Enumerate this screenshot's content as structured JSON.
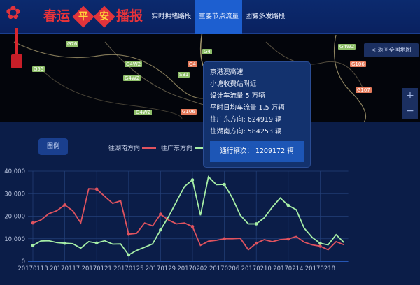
{
  "header": {
    "logo_text": [
      "春运",
      "平",
      "安",
      "播报"
    ],
    "tabs": [
      {
        "label": "实时拥堵路段",
        "active": false
      },
      {
        "label": "重要节点流量",
        "active": true
      },
      {
        "label": "团雾多发路段",
        "active": false
      }
    ]
  },
  "map": {
    "back_label": "< 返回全国地图",
    "zoom_in": "+",
    "zoom_out": "−",
    "road_labels": [
      "G55",
      "G4W2",
      "G4W2",
      "G4W2",
      "S31",
      "G4",
      "G4",
      "G106",
      "G76",
      "G4W2",
      "G106",
      "G107"
    ]
  },
  "tooltip": {
    "road": "京港澳高速",
    "location": "小塘收费站附近",
    "design_flow": "设计车流量 5 万辆",
    "avg_flow": "平时日均车流量 1.5 万辆",
    "to_guangdong": "往广东方向: 624919 辆",
    "to_hunan": "往湖南方向: 584253 辆",
    "total": "通行辆次： 1209172 辆"
  },
  "legend": {
    "button": "图例",
    "series": [
      {
        "name": "往湖南方向",
        "color": "#e0535f"
      },
      {
        "name": "往广东方向",
        "color": "#a6eea6"
      }
    ]
  },
  "chart_data": {
    "type": "line",
    "x_tick_labels": [
      "20170113",
      "20170117",
      "20170121",
      "20170125",
      "20170129",
      "20170202",
      "20170206",
      "20170210",
      "20170214",
      "20170218"
    ],
    "x_start": "20170113",
    "x_end": "20170221",
    "y_tick_labels": [
      "0",
      "10,000",
      "20,000",
      "30,000",
      "40,000"
    ],
    "ylim": [
      0,
      40000
    ],
    "grid": true,
    "series": [
      {
        "name": "往湖南方向",
        "color": "#e0535f",
        "values": [
          17000,
          18300,
          21100,
          22400,
          25000,
          22400,
          17000,
          32200,
          32000,
          28800,
          25700,
          26800,
          12000,
          12400,
          17000,
          15700,
          20900,
          18300,
          16600,
          17000,
          15400,
          7000,
          8900,
          9300,
          10000,
          10000,
          10200,
          5100,
          8000,
          9600,
          8700,
          9600,
          9900,
          11000,
          8500,
          7300,
          6700,
          5100,
          8700,
          7300
        ]
      },
      {
        "name": "往广东方向",
        "color": "#a6eea6",
        "values": [
          7000,
          9000,
          9100,
          8300,
          8000,
          7800,
          5800,
          8700,
          8100,
          9100,
          7600,
          7700,
          2800,
          4800,
          6200,
          7700,
          13900,
          19800,
          26500,
          33200,
          36100,
          20400,
          37500,
          34000,
          34100,
          28100,
          20400,
          16600,
          16600,
          19300,
          24000,
          28100,
          24800,
          22900,
          14700,
          10600,
          8000,
          7300,
          11800,
          8300
        ]
      }
    ]
  }
}
